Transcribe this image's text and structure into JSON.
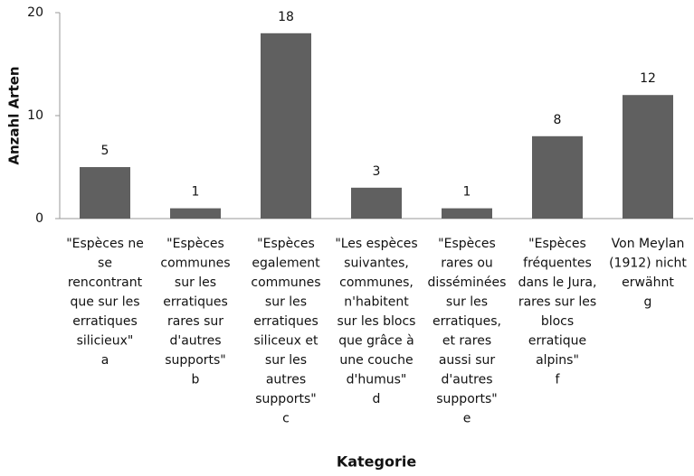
{
  "chart_data": {
    "type": "bar",
    "xlabel": "Kategorie",
    "ylabel": "Anzahl Arten",
    "categories": [
      "\"Espèces ne\nse\nrencontrant\nque sur les\nerratiques\nsilicieux\"\na",
      "\"Espèces\ncommunes\nsur les\nerratiques\nrares sur\nd'autres\nsupports\"\nb",
      "\"Espèces\negalement\ncommunes\nsur les\nerratiques\nsiliceux et\nsur les\nautres\nsupports\"\nc",
      "\"Les espèces\nsuivantes,\ncommunes,\nn'habitent\nsur les blocs\nque grâce à\nune couche\nd'humus\"\nd",
      "\"Espèces\nrares ou\ndisséminées\nsur les\nerratiques,\net rares\naussi sur\nd'autres\nsupports\"\ne",
      "\"Espèces\nfréquentes\ndans le Jura,\nrares sur les\nblocs\nerratique\nalpins\"\nf",
      "Von Meylan\n(1912) nicht\nerwähnt\ng"
    ],
    "values": [
      5,
      1,
      18,
      3,
      1,
      8,
      12
    ],
    "color": "#606060",
    "ylim": [
      0,
      20
    ],
    "yticks": [
      0,
      10,
      20
    ],
    "grid": false
  }
}
